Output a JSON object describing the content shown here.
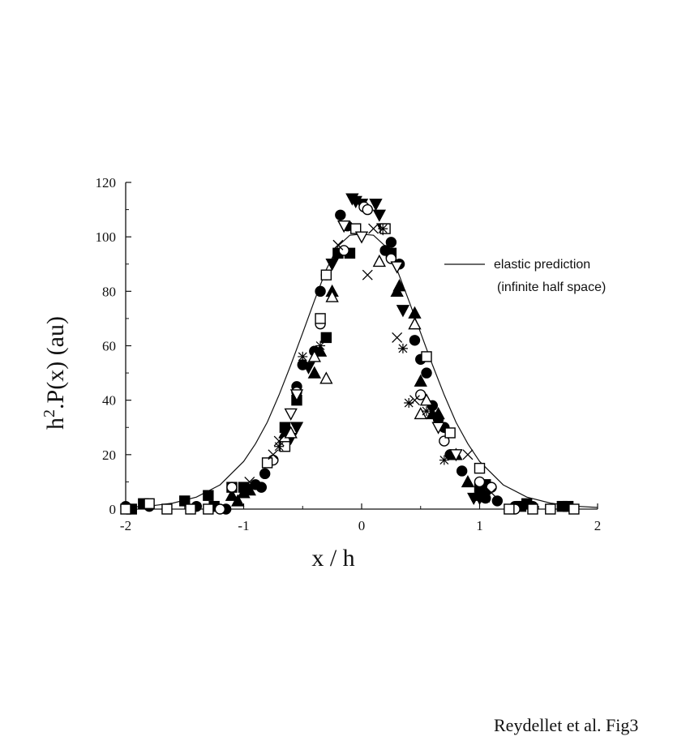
{
  "caption": "Reydellet et al. Fig3",
  "chart_data": {
    "type": "scatter",
    "title": "",
    "xlabel": "x / h",
    "ylabel_parts": {
      "prefix": "h",
      "superscript": "2",
      "suffix": ".P(x)  (au)"
    },
    "xlim": [
      -2,
      2
    ],
    "ylim": [
      0,
      120
    ],
    "x_ticks": [
      -2,
      -1,
      0,
      1,
      2
    ],
    "y_ticks": [
      0,
      20,
      40,
      60,
      80,
      100,
      120
    ],
    "grid": false,
    "legend_position": "top-right",
    "legend": [
      {
        "label": "elastic prediction",
        "style": "line"
      },
      {
        "label": "(infinite half space)",
        "style": "none"
      }
    ],
    "curve": {
      "name": "elastic prediction",
      "x": [
        -2.0,
        -1.8,
        -1.6,
        -1.4,
        -1.2,
        -1.0,
        -0.9,
        -0.8,
        -0.7,
        -0.6,
        -0.5,
        -0.4,
        -0.3,
        -0.2,
        -0.1,
        0.0,
        0.1,
        0.2,
        0.3,
        0.4,
        0.5,
        0.6,
        0.7,
        0.8,
        0.9,
        1.0,
        1.2,
        1.4,
        1.6,
        1.8,
        2.0
      ],
      "y": [
        0.6,
        1.1,
        2.2,
        4.4,
        8.9,
        17.5,
        24.0,
        31.9,
        41.9,
        53.0,
        64.7,
        76.6,
        88.0,
        96.6,
        100.6,
        101.0,
        100.6,
        96.6,
        88.0,
        76.6,
        64.7,
        53.0,
        41.9,
        31.9,
        24.0,
        17.5,
        8.9,
        4.4,
        2.2,
        1.1,
        0.6
      ]
    },
    "series": [
      {
        "marker": "circle-filled",
        "points": [
          [
            -0.18,
            108
          ],
          [
            -0.12,
            104
          ],
          [
            -0.35,
            80
          ],
          [
            -0.3,
            86
          ],
          [
            -0.5,
            53
          ],
          [
            -0.4,
            58
          ],
          [
            -0.55,
            45
          ],
          [
            -0.82,
            13
          ],
          [
            -0.9,
            9
          ],
          [
            -0.85,
            8
          ],
          [
            0.2,
            95
          ],
          [
            0.25,
            98
          ],
          [
            0.32,
            90
          ],
          [
            0.45,
            62
          ],
          [
            0.5,
            55
          ],
          [
            0.55,
            50
          ],
          [
            0.6,
            38
          ],
          [
            0.65,
            33
          ],
          [
            0.7,
            30
          ],
          [
            0.75,
            20
          ],
          [
            0.85,
            14
          ],
          [
            1.0,
            5
          ],
          [
            1.05,
            4
          ],
          [
            1.15,
            3
          ],
          [
            1.3,
            1
          ],
          [
            1.45,
            1
          ],
          [
            -1.4,
            1
          ],
          [
            -1.8,
            1
          ],
          [
            -2.0,
            1
          ],
          [
            -1.15,
            0
          ]
        ]
      },
      {
        "marker": "square-filled",
        "points": [
          [
            -0.1,
            94
          ],
          [
            0.25,
            94
          ],
          [
            -0.3,
            63
          ],
          [
            -0.55,
            40
          ],
          [
            -0.65,
            30
          ],
          [
            -1.0,
            8
          ],
          [
            -1.1,
            8
          ],
          [
            -1.3,
            5
          ],
          [
            -1.5,
            3
          ],
          [
            -1.25,
            1
          ],
          [
            -1.85,
            2
          ],
          [
            -1.95,
            0
          ],
          [
            1.0,
            8
          ],
          [
            1.05,
            9
          ],
          [
            1.35,
            1
          ],
          [
            1.4,
            2
          ],
          [
            1.75,
            1
          ],
          [
            1.7,
            1
          ],
          [
            -0.2,
            94
          ]
        ]
      },
      {
        "marker": "triangle-up-filled",
        "points": [
          [
            0.3,
            80
          ],
          [
            0.32,
            82
          ],
          [
            0.45,
            72
          ],
          [
            0.5,
            47
          ],
          [
            0.6,
            35
          ],
          [
            0.65,
            35
          ],
          [
            0.8,
            20
          ],
          [
            0.9,
            10
          ],
          [
            -0.25,
            80
          ],
          [
            -0.35,
            58
          ],
          [
            -0.4,
            50
          ],
          [
            -0.65,
            28
          ],
          [
            -1.05,
            3
          ],
          [
            -1.1,
            5
          ],
          [
            -1.0,
            6
          ],
          [
            -0.95,
            7
          ],
          [
            1.0,
            5
          ]
        ]
      },
      {
        "marker": "triangle-down-filled",
        "points": [
          [
            -0.08,
            114
          ],
          [
            -0.05,
            113
          ],
          [
            0.0,
            112
          ],
          [
            0.12,
            112
          ],
          [
            0.15,
            108
          ],
          [
            0.18,
            103
          ],
          [
            -0.25,
            90
          ],
          [
            0.35,
            73
          ],
          [
            -0.55,
            30
          ],
          [
            -0.6,
            26
          ],
          [
            0.95,
            4
          ],
          [
            1.0,
            4
          ],
          [
            1.05,
            5
          ],
          [
            -0.45,
            52
          ]
        ]
      },
      {
        "marker": "circle-open",
        "points": [
          [
            0.02,
            111
          ],
          [
            0.05,
            110
          ],
          [
            -0.15,
            95
          ],
          [
            0.25,
            92
          ],
          [
            -0.35,
            68
          ],
          [
            0.5,
            42
          ],
          [
            -0.55,
            43
          ],
          [
            -0.75,
            18
          ],
          [
            1.0,
            10
          ],
          [
            1.1,
            8
          ],
          [
            1.3,
            0
          ],
          [
            -1.1,
            8
          ],
          [
            -1.2,
            0
          ],
          [
            -0.65,
            25
          ],
          [
            0.7,
            25
          ]
        ]
      },
      {
        "marker": "square-open",
        "points": [
          [
            0.2,
            103
          ],
          [
            -0.05,
            103
          ],
          [
            -0.3,
            86
          ],
          [
            0.55,
            56
          ],
          [
            -0.35,
            70
          ],
          [
            0.75,
            28
          ],
          [
            1.0,
            15
          ],
          [
            -0.8,
            17
          ],
          [
            -0.65,
            23
          ],
          [
            -1.3,
            0
          ],
          [
            -1.45,
            0
          ],
          [
            -1.8,
            2
          ],
          [
            -1.65,
            0
          ],
          [
            1.25,
            0
          ],
          [
            1.45,
            0
          ],
          [
            1.6,
            0
          ],
          [
            1.8,
            0
          ],
          [
            -2.0,
            0
          ]
        ]
      },
      {
        "marker": "triangle-up-open",
        "points": [
          [
            0.15,
            91
          ],
          [
            -0.25,
            78
          ],
          [
            -0.4,
            56
          ],
          [
            -0.3,
            48
          ],
          [
            0.45,
            68
          ],
          [
            0.5,
            35
          ],
          [
            0.55,
            40
          ],
          [
            -0.6,
            28
          ]
        ]
      },
      {
        "marker": "triangle-down-open",
        "points": [
          [
            0.0,
            100
          ],
          [
            -0.15,
            104
          ],
          [
            -0.6,
            35
          ],
          [
            -0.55,
            42
          ],
          [
            0.3,
            89
          ],
          [
            0.65,
            30
          ],
          [
            0.8,
            20
          ]
        ]
      },
      {
        "marker": "cross",
        "points": [
          [
            0.05,
            86
          ],
          [
            -0.2,
            97
          ],
          [
            0.1,
            103
          ],
          [
            -0.7,
            25
          ],
          [
            -0.75,
            20
          ],
          [
            0.9,
            20
          ],
          [
            1.1,
            6
          ],
          [
            -0.95,
            10
          ],
          [
            0.45,
            40
          ],
          [
            0.3,
            63
          ]
        ]
      },
      {
        "marker": "asterisk",
        "points": [
          [
            0.18,
            103
          ],
          [
            0.35,
            59
          ],
          [
            0.55,
            36
          ],
          [
            0.7,
            18
          ],
          [
            -0.5,
            56
          ],
          [
            -0.7,
            23
          ],
          [
            0.4,
            39
          ],
          [
            1.05,
            4
          ],
          [
            -0.35,
            60
          ]
        ]
      }
    ]
  }
}
